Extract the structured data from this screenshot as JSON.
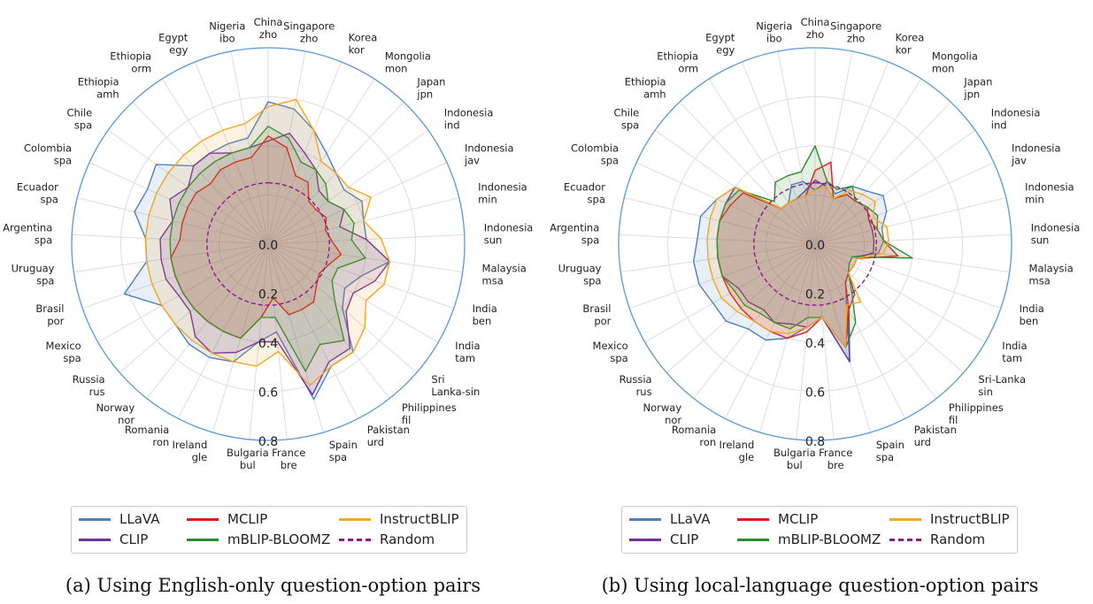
{
  "chart_data": [
    {
      "type": "radar",
      "caption": "(a) Using English-only question-option pairs",
      "rlim": [
        0.0,
        0.8
      ],
      "r_ticks": [
        "0.0",
        "0.2",
        "0.4",
        "0.6",
        "0.8"
      ],
      "categories": [
        [
          "China",
          "zho"
        ],
        [
          "Singapore",
          "zho"
        ],
        [
          "Korea",
          "kor"
        ],
        [
          "Mongolia",
          "mon"
        ],
        [
          "Japan",
          "jpn"
        ],
        [
          "Indonesia",
          "ind"
        ],
        [
          "Indonesia",
          "jav"
        ],
        [
          "Indonesia",
          "min"
        ],
        [
          "Indonesia",
          "sun"
        ],
        [
          "Malaysia",
          "msa"
        ],
        [
          "India",
          "ben"
        ],
        [
          "India",
          "tam"
        ],
        [
          "Sri",
          "Lanka-sin"
        ],
        [
          "Philippines",
          "fil"
        ],
        [
          "Pakistan",
          "urd"
        ],
        [
          "Spain",
          "spa"
        ],
        [
          "France",
          "bre"
        ],
        [
          "Bulgaria",
          "bul"
        ],
        [
          "Ireland",
          "gle"
        ],
        [
          "Romania",
          "ron"
        ],
        [
          "Norway",
          "nor"
        ],
        [
          "Russia",
          "rus"
        ],
        [
          "Mexico",
          "spa"
        ],
        [
          "Brasil",
          "por"
        ],
        [
          "Uruguay",
          "spa"
        ],
        [
          "Argentina",
          "spa"
        ],
        [
          "Ecuador",
          "spa"
        ],
        [
          "Colombia",
          "spa"
        ],
        [
          "Chile",
          "spa"
        ],
        [
          "Ethiopia",
          "amh"
        ],
        [
          "Ethiopia",
          "orm"
        ],
        [
          "Egypt",
          "egy"
        ],
        [
          "Nigeria",
          "ibo"
        ]
      ],
      "series": [
        {
          "name": "LLaVA",
          "color": "#4f81bd",
          "dashed": false,
          "fill": true,
          "values": [
            0.58,
            0.56,
            0.5,
            0.44,
            0.4,
            0.38,
            0.42,
            0.4,
            0.4,
            0.5,
            0.4,
            0.36,
            0.4,
            0.56,
            0.56,
            0.66,
            0.36,
            0.4,
            0.5,
            0.52,
            0.52,
            0.5,
            0.5,
            0.62,
            0.5,
            0.5,
            0.56,
            0.54,
            0.56,
            0.44,
            0.44,
            0.44,
            0.44
          ]
        },
        {
          "name": "CLIP",
          "color": "#7030a0",
          "dashed": false,
          "fill": true,
          "values": [
            0.42,
            0.46,
            0.4,
            0.36,
            0.3,
            0.3,
            0.34,
            0.3,
            0.4,
            0.5,
            0.46,
            0.4,
            0.42,
            0.54,
            0.54,
            0.64,
            0.4,
            0.4,
            0.46,
            0.5,
            0.48,
            0.42,
            0.42,
            0.44,
            0.44,
            0.44,
            0.4,
            0.44,
            0.4,
            0.44,
            0.44,
            0.4,
            0.4
          ]
        },
        {
          "name": "MCLIP",
          "color": "#e41a1c",
          "dashed": false,
          "fill": true,
          "values": [
            0.44,
            0.4,
            0.3,
            0.3,
            0.24,
            0.24,
            0.26,
            0.24,
            0.26,
            0.3,
            0.26,
            0.24,
            0.26,
            0.3,
            0.3,
            0.3,
            0.22,
            0.3,
            0.4,
            0.4,
            0.4,
            0.4,
            0.4,
            0.4,
            0.4,
            0.36,
            0.36,
            0.36,
            0.36,
            0.34,
            0.36,
            0.36,
            0.36
          ]
        },
        {
          "name": "mBLIP-BLOOMZ",
          "color": "#2e8b2e",
          "dashed": false,
          "fill": true,
          "values": [
            0.48,
            0.44,
            0.36,
            0.36,
            0.34,
            0.3,
            0.34,
            0.36,
            0.34,
            0.4,
            0.3,
            0.3,
            0.36,
            0.5,
            0.46,
            0.54,
            0.3,
            0.3,
            0.4,
            0.4,
            0.4,
            0.4,
            0.4,
            0.4,
            0.4,
            0.4,
            0.4,
            0.4,
            0.4,
            0.4,
            0.4,
            0.4,
            0.4
          ]
        },
        {
          "name": "InstructBLIP",
          "color": "#f5a623",
          "dashed": false,
          "fill": true,
          "values": [
            0.56,
            0.6,
            0.5,
            0.4,
            0.4,
            0.4,
            0.46,
            0.4,
            0.46,
            0.5,
            0.5,
            0.46,
            0.52,
            0.56,
            0.56,
            0.6,
            0.44,
            0.5,
            0.5,
            0.5,
            0.5,
            0.5,
            0.5,
            0.5,
            0.5,
            0.5,
            0.5,
            0.5,
            0.5,
            0.5,
            0.5,
            0.5,
            0.5
          ]
        },
        {
          "name": "Random",
          "color": "#8b1a8b",
          "dashed": true,
          "fill": false,
          "values": [
            0.25,
            0.25,
            0.25,
            0.25,
            0.25,
            0.25,
            0.25,
            0.25,
            0.25,
            0.25,
            0.25,
            0.25,
            0.25,
            0.25,
            0.25,
            0.25,
            0.25,
            0.25,
            0.25,
            0.25,
            0.25,
            0.25,
            0.25,
            0.25,
            0.25,
            0.25,
            0.25,
            0.25,
            0.25,
            0.25,
            0.25,
            0.25,
            0.25
          ]
        }
      ]
    },
    {
      "type": "radar",
      "caption": "(b) Using local-language question-option pairs",
      "rlim": [
        0.0,
        0.8
      ],
      "r_ticks": [
        "0.0",
        "0.2",
        "0.4",
        "0.6",
        "0.8"
      ],
      "categories": [
        [
          "China",
          "zho"
        ],
        [
          "Singapore",
          "zho"
        ],
        [
          "Korea",
          "kor"
        ],
        [
          "Mongolia",
          "mon"
        ],
        [
          "Japan",
          "jpn"
        ],
        [
          "Indonesia",
          "ind"
        ],
        [
          "Indonesia",
          "jav"
        ],
        [
          "Indonesia",
          "min"
        ],
        [
          "Indonesia",
          "sun"
        ],
        [
          "Malaysia",
          "msa"
        ],
        [
          "India",
          "ben"
        ],
        [
          "India",
          "tam"
        ],
        [
          "Sri-Lanka",
          "sin"
        ],
        [
          "Philippines",
          "fil"
        ],
        [
          "Pakistan",
          "urd"
        ],
        [
          "Spain",
          "spa"
        ],
        [
          "France",
          "bre"
        ],
        [
          "Bulgaria",
          "bul"
        ],
        [
          "Ireland",
          "gle"
        ],
        [
          "Romania",
          "ron"
        ],
        [
          "Norway",
          "nor"
        ],
        [
          "Russia",
          "rus"
        ],
        [
          "Mexico",
          "spa"
        ],
        [
          "Brasil",
          "por"
        ],
        [
          "Uruguay",
          "spa"
        ],
        [
          "Argentina",
          "spa"
        ],
        [
          "Ecuador",
          "spa"
        ],
        [
          "Colombia",
          "spa"
        ],
        [
          "Chile",
          "spa"
        ],
        [
          "Ethiopia",
          "amh"
        ],
        [
          "Ethiopia",
          "orm"
        ],
        [
          "Egypt",
          "egy"
        ],
        [
          "Nigeria",
          "ibo"
        ]
      ],
      "series": [
        {
          "name": "LLaVA",
          "color": "#4f81bd",
          "dashed": false,
          "fill": true,
          "values": [
            0.22,
            0.26,
            0.22,
            0.28,
            0.3,
            0.34,
            0.32,
            0.28,
            0.28,
            0.26,
            0.16,
            0.16,
            0.18,
            0.2,
            0.28,
            0.5,
            0.3,
            0.34,
            0.4,
            0.44,
            0.44,
            0.48,
            0.48,
            0.5,
            0.5,
            0.48,
            0.48,
            0.44,
            0.4,
            0.2,
            0.2,
            0.26,
            0.26
          ]
        },
        {
          "name": "CLIP",
          "color": "#7030a0",
          "dashed": false,
          "fill": true,
          "values": [
            0.26,
            0.24,
            0.2,
            0.24,
            0.24,
            0.26,
            0.24,
            0.24,
            0.24,
            0.24,
            0.18,
            0.18,
            0.18,
            0.26,
            0.3,
            0.5,
            0.3,
            0.34,
            0.34,
            0.36,
            0.34,
            0.36,
            0.36,
            0.4,
            0.4,
            0.4,
            0.4,
            0.4,
            0.4,
            0.2,
            0.2,
            0.2,
            0.22
          ]
        },
        {
          "name": "MCLIP",
          "color": "#e41a1c",
          "dashed": false,
          "fill": true,
          "values": [
            0.3,
            0.34,
            0.2,
            0.24,
            0.24,
            0.26,
            0.24,
            0.26,
            0.28,
            0.34,
            0.18,
            0.18,
            0.18,
            0.2,
            0.3,
            0.44,
            0.3,
            0.36,
            0.4,
            0.4,
            0.4,
            0.4,
            0.4,
            0.4,
            0.4,
            0.4,
            0.4,
            0.38,
            0.36,
            0.2,
            0.2,
            0.2,
            0.2
          ]
        },
        {
          "name": "mBLIP-BLOOMZ",
          "color": "#2e8b2e",
          "dashed": false,
          "fill": true,
          "values": [
            0.4,
            0.26,
            0.24,
            0.28,
            0.24,
            0.26,
            0.28,
            0.26,
            0.28,
            0.4,
            0.16,
            0.16,
            0.18,
            0.24,
            0.36,
            0.44,
            0.3,
            0.3,
            0.36,
            0.36,
            0.36,
            0.38,
            0.38,
            0.4,
            0.4,
            0.4,
            0.4,
            0.4,
            0.38,
            0.24,
            0.3,
            0.3,
            0.3
          ]
        },
        {
          "name": "InstructBLIP",
          "color": "#f5a623",
          "dashed": false,
          "fill": true,
          "values": [
            0.22,
            0.24,
            0.2,
            0.26,
            0.28,
            0.3,
            0.26,
            0.3,
            0.3,
            0.28,
            0.18,
            0.18,
            0.18,
            0.3,
            0.28,
            0.44,
            0.3,
            0.34,
            0.38,
            0.4,
            0.4,
            0.42,
            0.44,
            0.44,
            0.44,
            0.44,
            0.44,
            0.44,
            0.4,
            0.2,
            0.2,
            0.2,
            0.2
          ]
        },
        {
          "name": "Random",
          "color": "#8b1a8b",
          "dashed": true,
          "fill": false,
          "values": [
            0.25,
            0.25,
            0.25,
            0.25,
            0.25,
            0.25,
            0.25,
            0.25,
            0.25,
            0.25,
            0.25,
            0.25,
            0.25,
            0.25,
            0.25,
            0.25,
            0.25,
            0.25,
            0.25,
            0.25,
            0.25,
            0.25,
            0.25,
            0.25,
            0.25,
            0.25,
            0.25,
            0.25,
            0.25,
            0.25,
            0.25,
            0.25,
            0.25
          ]
        }
      ]
    }
  ],
  "legend": {
    "entries": [
      {
        "name": "LLaVA",
        "color": "#4f81bd",
        "dashed": false
      },
      {
        "name": "MCLIP",
        "color": "#e41a1c",
        "dashed": false
      },
      {
        "name": "InstructBLIP",
        "color": "#f5a623",
        "dashed": false
      },
      {
        "name": "CLIP",
        "color": "#7030a0",
        "dashed": false
      },
      {
        "name": "mBLIP-BLOOMZ",
        "color": "#2e8b2e",
        "dashed": false
      },
      {
        "name": "Random",
        "color": "#8b1a8b",
        "dashed": true
      }
    ]
  }
}
